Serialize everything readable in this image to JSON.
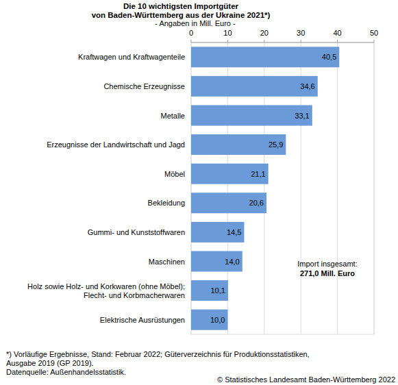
{
  "chart_data": {
    "type": "bar",
    "orientation": "horizontal",
    "title": "Die 10 wichtigsten Importgüter\nvon Baden-Württemberg aus der Ukraine 2021*)",
    "subtitle": "- Angaben in Mill. Euro -",
    "categories": [
      "Kraftwagen und Kraftwagenteile",
      "Chemische Erzeugnisse",
      "Metalle",
      "Erzeugnisse der Landwirtschaft und Jagd",
      "Möbel",
      "Bekleidung",
      "Gummi- und Kunststoffwaren",
      "Maschinen",
      "Holz sowie Holz- und Korkwaren (ohne Möbel);\nFlecht- und Korbmacherwaren",
      "Elektrische Ausrüstungen"
    ],
    "values": [
      40.5,
      34.6,
      33.1,
      25.9,
      21.1,
      20.6,
      14.5,
      14.0,
      10.1,
      10.0
    ],
    "value_labels": [
      "40,5",
      "34,6",
      "33,1",
      "25,9",
      "21,1",
      "20,6",
      "14,5",
      "14,0",
      "10,1",
      "10,0"
    ],
    "data_labels": true,
    "color": "#6a9bd8",
    "xlim": [
      0,
      50
    ],
    "xticks": [
      0,
      10,
      20,
      30,
      40,
      50
    ],
    "grid": true,
    "annotations": [
      "Import insgesamt:",
      "271,0 Mill. Euro"
    ],
    "notes": [
      "*) Vorläufige Ergebnisse, Stand: Februar 2022; Güterverzeichnis für Produktionsstatistiken,",
      "Ausgabe 2019 (GP 2019).",
      "Datenquelle: Außenhandelsstatistik."
    ],
    "source": "© Statistisches Landesamt Baden-Württemberg 2022"
  }
}
